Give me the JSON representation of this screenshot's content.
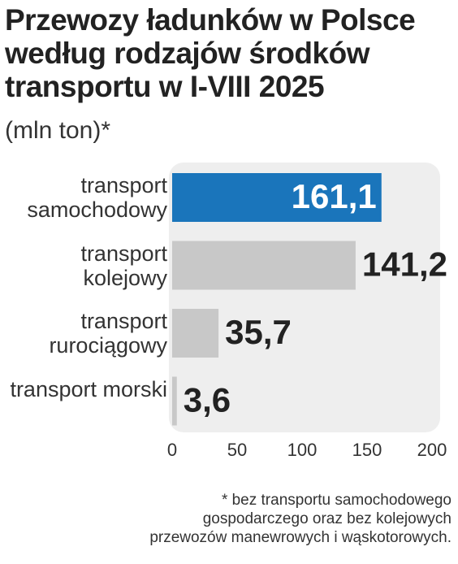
{
  "chart_data": {
    "type": "bar",
    "orientation": "horizontal",
    "title": [
      "Przewozy ładunków w Polsce",
      "według rodzajów środków",
      "transportu w I-VIII 2025"
    ],
    "subtitle": "(mln ton)*",
    "categories": [
      "transport samochodowy",
      "transport kolejowy",
      "transport rurociągowy",
      "transport morski"
    ],
    "values": [
      161.1,
      141.2,
      35.7,
      3.6
    ],
    "value_labels": [
      "161,1",
      "141,2",
      "35,7",
      "3,6"
    ],
    "colors": [
      "#1a75bb",
      "#c8c8c8",
      "#c8c8c8",
      "#c8c8c8"
    ],
    "xlim": [
      0,
      200
    ],
    "xticks": [
      0,
      50,
      100,
      150,
      200
    ],
    "footnote": [
      "* bez transportu samochodowego",
      "gospodarczego oraz bez kolejowych",
      "przewozów manewrowych i wąskotorowych."
    ]
  }
}
